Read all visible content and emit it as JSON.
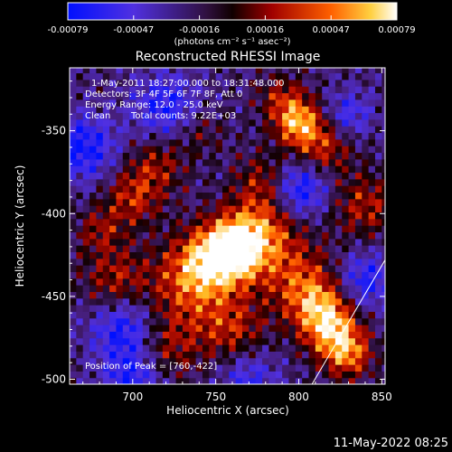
{
  "chart_data": {
    "type": "heatmap",
    "title": "Reconstructed RHESSI Image",
    "xlabel": "Heliocentric X (arcsec)",
    "ylabel": "Heliocentric Y (arcsec)",
    "xlim": [
      662,
      852
    ],
    "ylim": [
      -503,
      -312
    ],
    "x_ticks": [
      700,
      750,
      800,
      850
    ],
    "y_ticks": [
      -350,
      -400,
      -450,
      -500
    ],
    "colorbar": {
      "ticks": [
        "-0.00079",
        "-0.00047",
        "-0.00016",
        "0.00016",
        "0.00047",
        "0.00079"
      ],
      "range": [
        -0.00079,
        0.00079
      ],
      "unit_label": "(photons cm⁻² s⁻¹ asec⁻²)",
      "colormap": [
        "#0000ff",
        "#8040ff",
        "#1a0000",
        "#c00000",
        "#ff8000",
        "#ffffff"
      ]
    },
    "annotations": {
      "date_range": "1-May-2011 18:27:00.000 to 18:31:48.000",
      "detectors": "Detectors: 3F 4F 5F 6F 7F 8F, Att 0",
      "energy": "Energy Range: 12.0 - 25.0 keV",
      "clean": "Clean",
      "total_counts": "Total counts: 9.22E+03",
      "peak": "Position of Peak = [760,-422]"
    },
    "peak": [
      760,
      -422
    ],
    "limb_arc": [
      [
        808,
        -503
      ],
      [
        852,
        -428
      ]
    ]
  },
  "footer": {
    "timestamp": "11-May-2022 08:25"
  }
}
